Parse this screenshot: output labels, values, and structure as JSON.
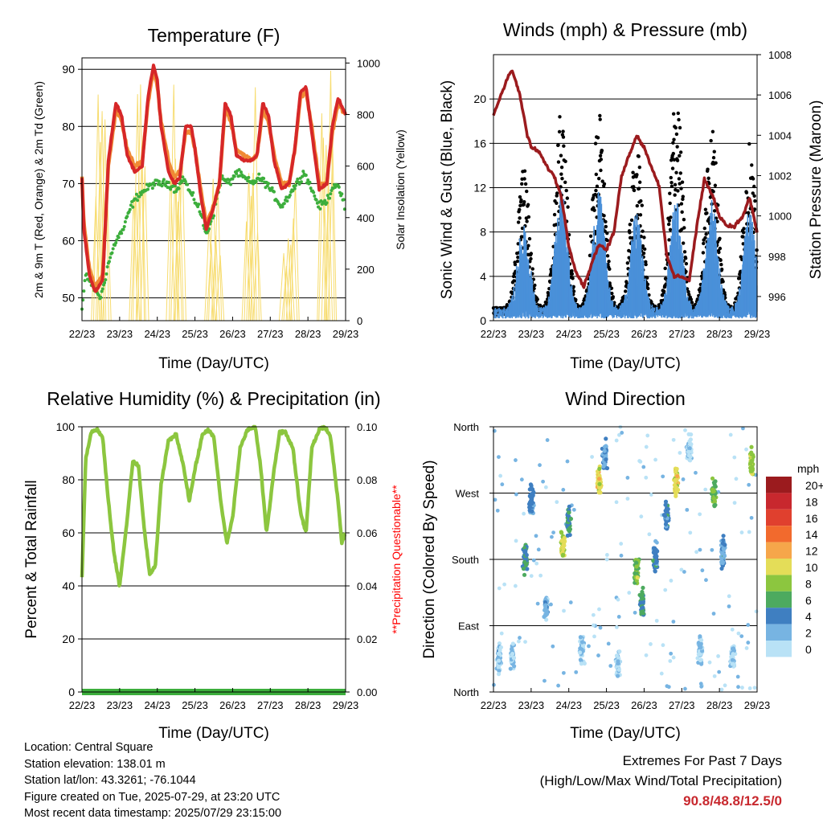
{
  "info": {
    "location": "Location: Central Square",
    "elevation": "Station elevation: 138.01 m",
    "latlon": "Station lat/lon: 43.3261; -76.1044",
    "created": "Figure created on Tue, 2025-07-29, at 23:20 UTC",
    "recent": "Most recent data timestamp: 2025/07/29 23:15:00"
  },
  "extremes": {
    "title": "Extremes For Past 7 Days",
    "subtitle": "(High/Low/Max Wind/Total Precipitation)",
    "values": "90.8/48.8/12.5/0"
  },
  "colors": {
    "temp2m": "#d62728",
    "temp9m": "#f08a35",
    "dewpoint": "#3cae3c",
    "solar": "#f7dc6f",
    "wind": "#4a90d9",
    "gust": "#000000",
    "pressure": "#9b1b1e",
    "rh": "#8cc63f",
    "precip": "#3cae3c",
    "precip_note": "#ff0000",
    "grid": "#000000"
  },
  "chart_data": [
    {
      "type": "line",
      "title": "Temperature (F)",
      "xlabel": "Time (Day/UTC)",
      "ylabel": "2m & 9m T (Red, Orange) & 2m Td (Green)",
      "y2label": "Solar Insolation (Yellow)",
      "x_ticks": [
        "22/23",
        "23/23",
        "24/23",
        "25/23",
        "26/23",
        "27/23",
        "28/23",
        "29/23"
      ],
      "ylim": [
        46,
        92
      ],
      "yticks": [
        50,
        60,
        70,
        80,
        90
      ],
      "y2lim": [
        0,
        1020
      ],
      "y2ticks": [
        0,
        200,
        400,
        600,
        800,
        1000
      ],
      "series": [
        {
          "x": [
            0,
            0.05,
            0.2,
            0.35,
            0.55,
            0.7,
            0.9,
            1.05,
            1.2,
            1.4,
            1.6,
            1.75,
            1.9,
            2.0,
            2.1,
            2.3,
            2.45,
            2.6,
            2.75,
            2.9,
            3.0,
            3.15,
            3.3,
            3.5,
            3.65,
            3.8,
            3.95,
            4.1,
            4.3,
            4.5,
            4.65,
            4.8,
            4.95,
            5.1,
            5.3,
            5.5,
            5.65,
            5.8,
            5.95,
            6.1,
            6.3,
            6.5,
            6.65,
            6.8,
            7.0
          ],
          "values": [
            71,
            62,
            54,
            51,
            53,
            74,
            84,
            82,
            75,
            72,
            73,
            85,
            90.8,
            88,
            80,
            72,
            70,
            71,
            80,
            80,
            76,
            68,
            62,
            66,
            70,
            84,
            82,
            75,
            74,
            74,
            75,
            84,
            82,
            74,
            69,
            70,
            76,
            86,
            87,
            79,
            69,
            70,
            80,
            85,
            82
          ]
        },
        {
          "x": [
            0,
            0.05,
            0.2,
            0.35,
            0.55,
            0.7,
            0.9,
            1.05,
            1.2,
            1.4,
            1.6,
            1.75,
            1.9,
            2.0,
            2.1,
            2.3,
            2.45,
            2.6,
            2.75,
            2.9,
            3.0,
            3.15,
            3.3,
            3.5,
            3.65,
            3.8,
            3.95,
            4.1,
            4.3,
            4.5,
            4.65,
            4.8,
            4.95,
            5.1,
            5.3,
            5.5,
            5.65,
            5.8,
            5.95,
            6.1,
            6.3,
            6.5,
            6.65,
            6.8,
            7.0
          ],
          "values": [
            71,
            63,
            55,
            52,
            54,
            73,
            83,
            81,
            76,
            73,
            74,
            84,
            90,
            87,
            81,
            74,
            71,
            72,
            79,
            79,
            76,
            69,
            63,
            66,
            70,
            83,
            81,
            76,
            75,
            74,
            75,
            83,
            81,
            75,
            70,
            70,
            76,
            85,
            86,
            80,
            70,
            70,
            79,
            84,
            82
          ]
        },
        {
          "x": [
            0,
            0.1,
            0.3,
            0.5,
            0.7,
            0.9,
            1.1,
            1.3,
            1.5,
            1.7,
            1.9,
            2.1,
            2.3,
            2.5,
            2.7,
            2.9,
            3.1,
            3.3,
            3.5,
            3.7,
            3.9,
            4.1,
            4.3,
            4.5,
            4.7,
            4.9,
            5.1,
            5.3,
            5.5,
            5.7,
            5.9,
            6.1,
            6.3,
            6.5,
            6.7,
            6.9,
            7.0
          ],
          "values": [
            48,
            54,
            52,
            50,
            56,
            60,
            62,
            66,
            68,
            69,
            70,
            70,
            70,
            69,
            71,
            68,
            66,
            61,
            65,
            71,
            70,
            72,
            71,
            70,
            71,
            70,
            68,
            66,
            68,
            70,
            72,
            69,
            66,
            67,
            70,
            68,
            65
          ]
        }
      ],
      "series_solar": {
        "days": [
          0,
          1,
          2,
          3,
          4,
          5,
          6
        ],
        "peak": [
          880,
          1020,
          1000,
          600,
          940,
          600,
          1000
        ]
      }
    },
    {
      "type": "scatter",
      "title": "Winds (mph) & Pressure (mb)",
      "xlabel": "Time (Day/UTC)",
      "ylabel": "Sonic Wind & Gust (Blue, Black)",
      "y2label": "Station Pressure (Maroon)",
      "x_ticks": [
        "22/23",
        "23/23",
        "24/23",
        "25/23",
        "26/23",
        "27/23",
        "28/23",
        "29/23"
      ],
      "ylim": [
        0,
        24
      ],
      "yticks": [
        0,
        4,
        8,
        12,
        16,
        20
      ],
      "y2lim": [
        994.8,
        1008
      ],
      "y2ticks": [
        996,
        998,
        1000,
        1002,
        1004,
        1006,
        1008
      ],
      "wind_peaks": {
        "days": [
          0.8,
          1.8,
          2.8,
          3.8,
          4.85,
          5.8,
          6.8
        ],
        "wind_max": [
          9,
          12.5,
          12,
          10,
          11,
          11,
          10
        ],
        "gust_max": [
          14,
          19,
          19,
          16,
          21.5,
          18,
          16
        ]
      },
      "pressure": {
        "x": [
          0,
          0.2,
          0.4,
          0.5,
          0.7,
          0.9,
          1.0,
          1.2,
          1.4,
          1.6,
          1.8,
          2.0,
          2.2,
          2.4,
          2.6,
          2.8,
          3.0,
          3.2,
          3.4,
          3.6,
          3.8,
          4.0,
          4.2,
          4.4,
          4.6,
          4.8,
          5.0,
          5.2,
          5.4,
          5.6,
          5.8,
          6.0,
          6.2,
          6.4,
          6.6,
          6.8,
          7.0
        ],
        "values": [
          1005,
          1006,
          1007,
          1007.2,
          1006,
          1004,
          1003.4,
          1003.2,
          1002.5,
          1002,
          1001,
          998.5,
          997.2,
          996.5,
          997.6,
          998.6,
          998.3,
          999.2,
          1002,
          1003,
          1004,
          1003.4,
          1002.4,
          1001.5,
          998,
          997,
          997,
          996.8,
          999.5,
          1001.8,
          1001.1,
          1000,
          999.5,
          999.5,
          999.9,
          1000.9,
          999.2
        ]
      }
    },
    {
      "type": "line",
      "title": "Relative Humidity (%) & Precipitation (in)",
      "xlabel": "Time (Day/UTC)",
      "ylabel": "Percent & Total Rainfall",
      "y2label": "**Precipitation Questionable**",
      "x_ticks": [
        "22/23",
        "23/23",
        "24/23",
        "25/23",
        "26/23",
        "27/23",
        "28/23",
        "29/23"
      ],
      "ylim": [
        0,
        100
      ],
      "yticks": [
        0,
        20,
        40,
        60,
        80,
        100
      ],
      "y2lim": [
        0,
        0.1
      ],
      "y2ticks": [
        "0.00",
        "0.02",
        "0.04",
        "0.06",
        "0.08",
        "0.10"
      ],
      "series": [
        {
          "name": "RH",
          "x": [
            0,
            0.1,
            0.25,
            0.4,
            0.55,
            0.7,
            0.85,
            1.0,
            1.2,
            1.35,
            1.5,
            1.65,
            1.8,
            1.95,
            2.1,
            2.3,
            2.5,
            2.7,
            2.85,
            3.0,
            3.2,
            3.35,
            3.5,
            3.7,
            3.85,
            4.0,
            4.2,
            4.4,
            4.6,
            4.75,
            4.9,
            5.1,
            5.25,
            5.4,
            5.6,
            5.8,
            5.95,
            6.1,
            6.3,
            6.45,
            6.6,
            6.8,
            6.9,
            7.0
          ],
          "values": [
            43,
            88,
            98,
            99,
            96,
            72,
            52,
            40,
            65,
            87,
            85,
            62,
            44,
            48,
            78,
            95,
            97,
            85,
            72,
            84,
            97,
            99,
            96,
            70,
            56,
            66,
            92,
            99,
            100,
            84,
            60,
            84,
            98,
            98,
            92,
            68,
            60,
            92,
            99,
            100,
            96,
            72,
            56,
            60
          ]
        },
        {
          "name": "Precip",
          "x": [
            0,
            7
          ],
          "values": [
            0,
            0
          ]
        }
      ]
    },
    {
      "type": "scatter",
      "title": "Wind Direction",
      "xlabel": "Time (Day/UTC)",
      "ylabel": "Direction (Colored By Speed)",
      "x_ticks": [
        "22/23",
        "23/23",
        "24/23",
        "25/23",
        "26/23",
        "27/23",
        "28/23",
        "29/23"
      ],
      "ylim": [
        0,
        360
      ],
      "yticks": [
        "North",
        "East",
        "South",
        "West",
        "North"
      ],
      "clusters": [
        {
          "day": 0.15,
          "dir": 45,
          "speed": 1
        },
        {
          "day": 0.5,
          "dir": 50,
          "speed": 1
        },
        {
          "day": 0.85,
          "dir": 180,
          "speed": 5
        },
        {
          "day": 1.0,
          "dir": 260,
          "speed": 4
        },
        {
          "day": 1.4,
          "dir": 115,
          "speed": 2
        },
        {
          "day": 1.85,
          "dir": 200,
          "speed": 9
        },
        {
          "day": 2.0,
          "dir": 230,
          "speed": 5
        },
        {
          "day": 2.35,
          "dir": 60,
          "speed": 1
        },
        {
          "day": 2.8,
          "dir": 285,
          "speed": 10
        },
        {
          "day": 2.95,
          "dir": 320,
          "speed": 3
        },
        {
          "day": 3.3,
          "dir": 40,
          "speed": 1
        },
        {
          "day": 3.8,
          "dir": 165,
          "speed": 7
        },
        {
          "day": 3.95,
          "dir": 120,
          "speed": 5
        },
        {
          "day": 4.3,
          "dir": 180,
          "speed": 4
        },
        {
          "day": 4.6,
          "dir": 240,
          "speed": 4
        },
        {
          "day": 4.85,
          "dir": 285,
          "speed": 10
        },
        {
          "day": 5.2,
          "dir": 330,
          "speed": 1
        },
        {
          "day": 5.5,
          "dir": 60,
          "speed": 1
        },
        {
          "day": 5.85,
          "dir": 270,
          "speed": 7
        },
        {
          "day": 6.1,
          "dir": 190,
          "speed": 3
        },
        {
          "day": 6.35,
          "dir": 50,
          "speed": 1
        },
        {
          "day": 6.85,
          "dir": 310,
          "speed": 8
        }
      ],
      "colorbar": {
        "unit": "mph",
        "labels": [
          "20+",
          "18",
          "16",
          "14",
          "12",
          "10",
          "8",
          "6",
          "4",
          "2",
          "0"
        ],
        "colors": [
          "#9b1b1e",
          "#c8282e",
          "#e0402e",
          "#f26a2d",
          "#f6a64a",
          "#e4dd58",
          "#8cc63f",
          "#4daa5f",
          "#3f7fc1",
          "#77b4e2",
          "#b9e2f6"
        ]
      }
    }
  ]
}
